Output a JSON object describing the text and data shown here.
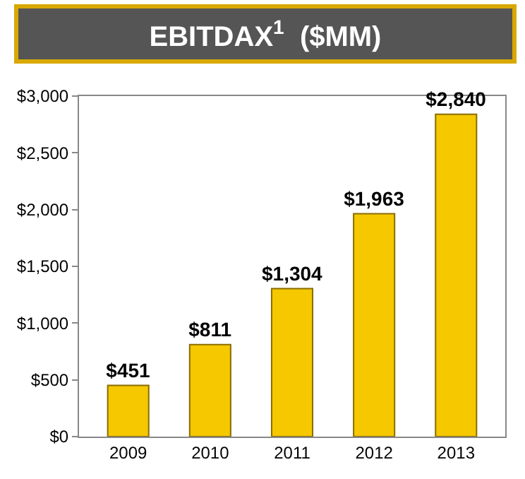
{
  "chart_data": {
    "type": "bar",
    "title": "EBITDAX$^{1}$  ($MM)",
    "categories": [
      "2009",
      "2010",
      "2011",
      "2012",
      "2013"
    ],
    "values": [
      451,
      811,
      1304,
      1963,
      2840
    ],
    "value_labels": [
      "$451",
      "$811",
      "$1,304",
      "$1,963",
      "$2,840"
    ],
    "color": "#f5c800",
    "ylim": [
      0,
      3000
    ],
    "yticks": [
      {
        "value": 0,
        "label": "$0"
      },
      {
        "value": 500,
        "label": "$500"
      },
      {
        "value": 1000,
        "label": "$1,000"
      },
      {
        "value": 1500,
        "label": "$1,500"
      },
      {
        "value": 2000,
        "label": "$2,000"
      },
      {
        "value": 2500,
        "label": "$2,500"
      },
      {
        "value": 3000,
        "label": "$3,000"
      }
    ],
    "legend": false
  }
}
